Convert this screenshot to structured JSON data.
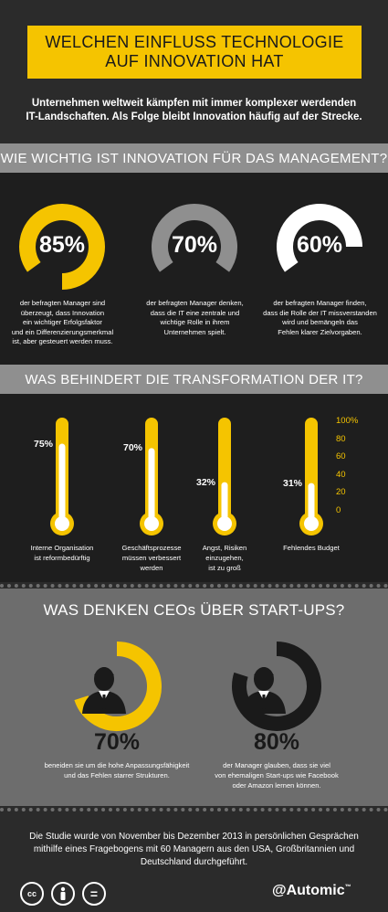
{
  "header": {
    "title_line1": "WELCHEN EINFLUSS TECHNOLOGIE",
    "title_line2": "AUF INNOVATION HAT"
  },
  "intro": {
    "line1": "Unternehmen weltweit kämpfen mit immer komplexer werdenden",
    "line2": "IT-Landschaften. Als Folge bleibt Innovation häufig auf der Strecke."
  },
  "section1": {
    "title": "WIE WICHTIG IST INNOVATION FÜR DAS MANAGEMENT?",
    "stats": [
      {
        "percent": 85,
        "label": "85%",
        "color": "#f5c400",
        "lines": [
          "der befragten Manager sind",
          "überzeugt, dass Innovation",
          "ein wichtiger Erfolgsfaktor",
          "und ein Differenzierungsmerkmal",
          "ist, aber gesteuert werden muss."
        ]
      },
      {
        "percent": 70,
        "label": "70%",
        "color": "#8f8f8f",
        "lines": [
          "der befragten Manager denken,",
          "dass die IT eine zentrale und",
          "wichtige Rolle in ihrem",
          "Unternehmen spielt."
        ]
      },
      {
        "percent": 60,
        "label": "60%",
        "color": "#ffffff",
        "lines": [
          "der befragten Manager finden,",
          "dass die Rolle der IT missverstanden",
          "wird und bemängeln das",
          "Fehlen klarer Zielvorgaben."
        ]
      }
    ]
  },
  "section2": {
    "title": "WAS BEHINDERT DIE TRANSFORMATION DER IT?",
    "scale": [
      "100%",
      "80",
      "60",
      "40",
      "20",
      "0"
    ],
    "bars": [
      {
        "percent": 75,
        "label": "75%",
        "lines": [
          "Interne Organisation",
          "ist reformbedürftig"
        ]
      },
      {
        "percent": 70,
        "label": "70%",
        "lines": [
          "Geschäftsprozesse",
          "müssen verbessert",
          "werden"
        ]
      },
      {
        "percent": 32,
        "label": "32%",
        "lines": [
          "Angst, Risiken",
          "einzugehen,",
          "ist zu groß"
        ]
      },
      {
        "percent": 31,
        "label": "31%",
        "lines": [
          "Fehlendes Budget"
        ]
      }
    ]
  },
  "section3": {
    "title": "WAS DENKEN CEOs ÜBER START-UPS?",
    "stats": [
      {
        "percent": 70,
        "label": "70%",
        "color": "#f5c400",
        "lines": [
          "beneiden sie um die hohe Anpassungsfähigkeit",
          "und das Fehlen starrer Strukturen."
        ]
      },
      {
        "percent": 80,
        "label": "80%",
        "color": "#1a1a1a",
        "lines": [
          "der Manager glauben, dass sie viel",
          "von ehemaligen Start-ups wie Facebook",
          "oder Amazon lernen können."
        ]
      }
    ]
  },
  "footer": {
    "lines": [
      "Die Studie wurde von November bis Dezember 2013 in persönlichen Gesprächen",
      "mithilfe eines Fragebogens mit 60 Managern aus den USA, Großbritannien und",
      "Deutschland durchgeführt."
    ],
    "cc_label": "cc",
    "equals_label": "=",
    "brand": "@Automic",
    "brand_mark": "™"
  },
  "colors": {
    "accent": "#f5c400",
    "background": "#2b2b2b",
    "panel": "#1e1e1e",
    "section_bar": "#8f8f8f",
    "ceo_panel": "#6d6d6d"
  },
  "icons": [
    "creative-commons-icon",
    "attribution-person-icon",
    "no-derivatives-icon",
    "manager-silhouette-icon"
  ]
}
